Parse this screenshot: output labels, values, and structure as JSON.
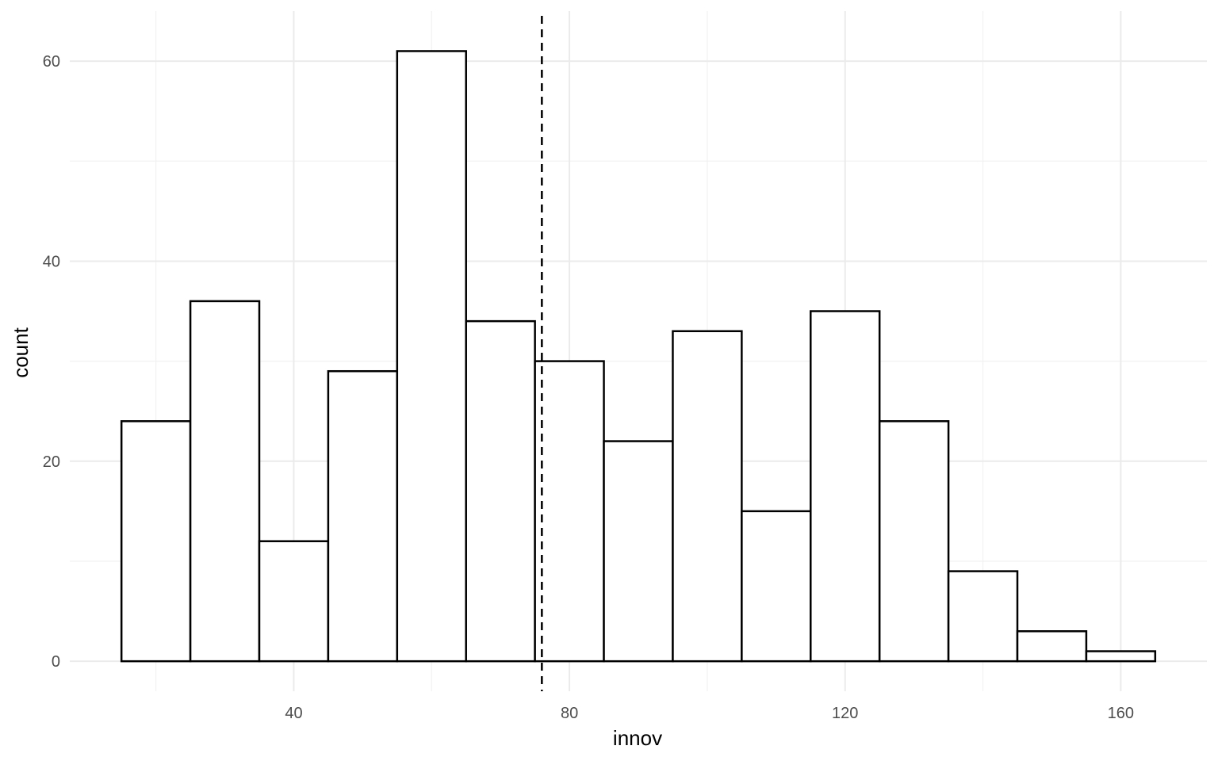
{
  "chart_data": {
    "type": "bar",
    "title": "",
    "xlabel": "innov",
    "ylabel": "count",
    "bin_width": 10,
    "bins": [
      {
        "x0": 15,
        "x1": 25,
        "count": 24
      },
      {
        "x0": 25,
        "x1": 35,
        "count": 36
      },
      {
        "x0": 35,
        "x1": 45,
        "count": 12
      },
      {
        "x0": 45,
        "x1": 55,
        "count": 29
      },
      {
        "x0": 55,
        "x1": 65,
        "count": 61
      },
      {
        "x0": 65,
        "x1": 75,
        "count": 34
      },
      {
        "x0": 75,
        "x1": 85,
        "count": 30
      },
      {
        "x0": 85,
        "x1": 95,
        "count": 22
      },
      {
        "x0": 95,
        "x1": 105,
        "count": 33
      },
      {
        "x0": 105,
        "x1": 115,
        "count": 15
      },
      {
        "x0": 115,
        "x1": 125,
        "count": 35
      },
      {
        "x0": 125,
        "x1": 135,
        "count": 24
      },
      {
        "x0": 135,
        "x1": 145,
        "count": 9
      },
      {
        "x0": 145,
        "x1": 155,
        "count": 3
      },
      {
        "x0": 155,
        "x1": 165,
        "count": 1
      }
    ],
    "vline": {
      "x": 76,
      "style": "dashed"
    },
    "xlim": [
      7.5,
      172.5
    ],
    "ylim": [
      -3,
      65
    ],
    "x_ticks": [
      40,
      80,
      120,
      160
    ],
    "x_minor_ticks": [
      20,
      60,
      100,
      140
    ],
    "y_ticks": [
      0,
      20,
      40,
      60
    ],
    "y_minor_ticks": [
      10,
      30,
      50
    ],
    "grid": true,
    "legend": "none"
  }
}
